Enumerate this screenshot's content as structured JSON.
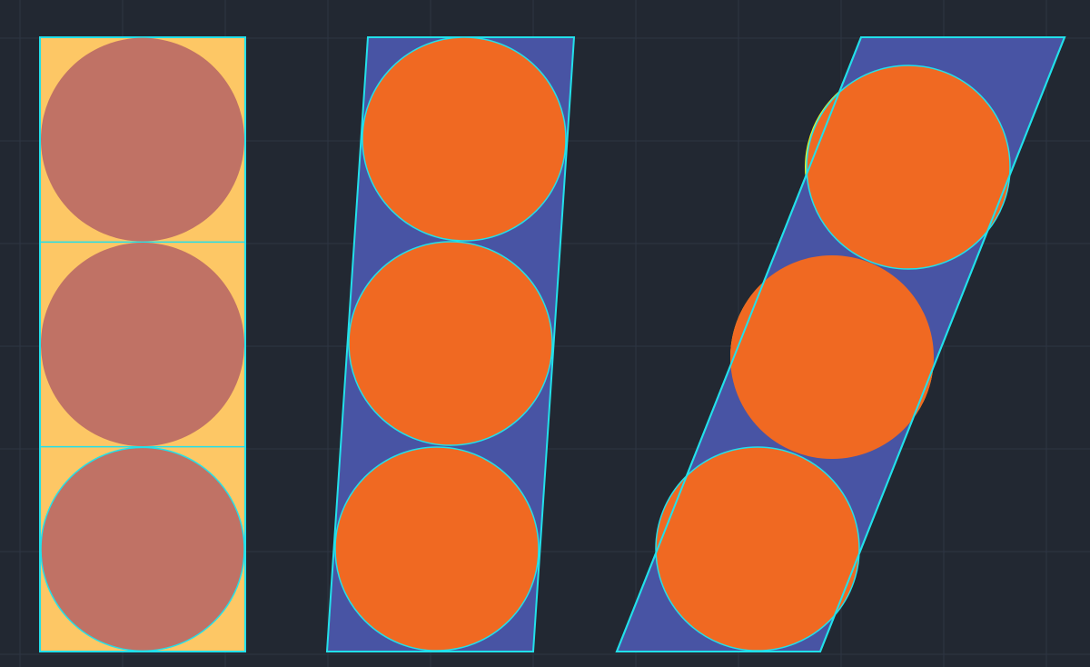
{
  "canvas": {
    "background": "#222832",
    "grid_color": "#2e3643"
  },
  "colors": {
    "outline": "#22e0ea",
    "rect_fill": "#fdc765",
    "rect_circle_fill": "#c07265",
    "parallelogram_fill": "#4854a4",
    "circle_fill": "#f06922",
    "highlight_fill": "#f0f020"
  },
  "shapes": [
    {
      "name": "rectangle-column",
      "kind": "rectangle",
      "cells": 3,
      "fill_key": "rect_fill",
      "circle_fill_key": "rect_circle_fill"
    },
    {
      "name": "slight-slant-parallelogram",
      "kind": "parallelogram",
      "cells": 3,
      "fill_key": "parallelogram_fill",
      "circle_fill_key": "circle_fill"
    },
    {
      "name": "steep-slant-parallelogram",
      "kind": "parallelogram",
      "cells": 3,
      "fill_key": "parallelogram_fill",
      "circle_fill_key": "circle_fill",
      "highlight_key": "highlight_fill"
    }
  ]
}
